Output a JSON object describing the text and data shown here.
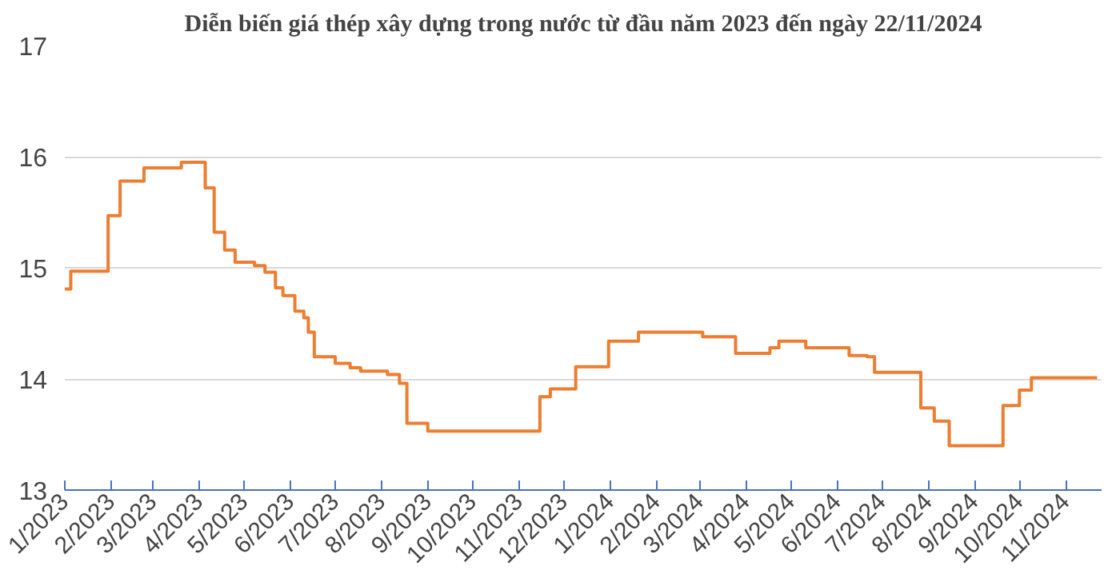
{
  "chart_data": {
    "type": "step",
    "title": "Diễn biến giá thép xây dựng trong nước từ đầu năm 2023 đến ngày 22/11/2024",
    "x": [
      "2023-01-01",
      "2023-01-05",
      "2023-01-30",
      "2023-02-07",
      "2023-02-23",
      "2023-03-20",
      "2023-04-05",
      "2023-04-11",
      "2023-04-18",
      "2023-04-25",
      "2023-05-08",
      "2023-05-15",
      "2023-05-22",
      "2023-05-27",
      "2023-06-04",
      "2023-06-10",
      "2023-06-13",
      "2023-06-17",
      "2023-07-01",
      "2023-07-11",
      "2023-07-18",
      "2023-08-05",
      "2023-08-13",
      "2023-08-18",
      "2023-09-01",
      "2023-11-15",
      "2023-11-22",
      "2023-12-09",
      "2023-12-31",
      "2024-01-20",
      "2024-03-03",
      "2024-03-25",
      "2024-04-17",
      "2024-04-23",
      "2024-05-11",
      "2024-06-09",
      "2024-06-21",
      "2024-06-26",
      "2024-07-27",
      "2024-08-05",
      "2024-08-15",
      "2024-09-20",
      "2024-10-01",
      "2024-10-09",
      "2024-11-22"
    ],
    "series": [
      {
        "color": "#ed7d31",
        "values": [
          14.81,
          14.97,
          15.47,
          15.78,
          15.9,
          15.95,
          15.72,
          15.32,
          15.16,
          15.05,
          15.02,
          14.96,
          14.82,
          14.75,
          14.61,
          14.55,
          14.42,
          14.2,
          14.14,
          14.1,
          14.07,
          14.04,
          13.96,
          13.6,
          13.53,
          13.84,
          13.91,
          14.11,
          14.34,
          14.42,
          14.38,
          14.23,
          14.28,
          14.34,
          14.28,
          14.21,
          14.2,
          14.06,
          13.74,
          13.62,
          13.4,
          13.76,
          13.9,
          14.01,
          14.01
        ]
      }
    ],
    "xlim": [
      "2023-01-01",
      "2024-11-25"
    ],
    "xticks": [
      {
        "value": "2023-01-01",
        "label": "1/2023"
      },
      {
        "value": "2023-02-01",
        "label": "2/2023"
      },
      {
        "value": "2023-03-01",
        "label": "3/2023"
      },
      {
        "value": "2023-04-01",
        "label": "4/2023"
      },
      {
        "value": "2023-05-01",
        "label": "5/2023"
      },
      {
        "value": "2023-06-01",
        "label": "6/2023"
      },
      {
        "value": "2023-07-01",
        "label": "7/2023"
      },
      {
        "value": "2023-08-01",
        "label": "8/2023"
      },
      {
        "value": "2023-09-01",
        "label": "9/2023"
      },
      {
        "value": "2023-10-01",
        "label": "10/2023"
      },
      {
        "value": "2023-11-01",
        "label": "11/2023"
      },
      {
        "value": "2023-12-01",
        "label": "12/2023"
      },
      {
        "value": "2024-01-01",
        "label": "1/2024"
      },
      {
        "value": "2024-02-01",
        "label": "2/2024"
      },
      {
        "value": "2024-03-01",
        "label": "3/2024"
      },
      {
        "value": "2024-04-01",
        "label": "4/2024"
      },
      {
        "value": "2024-05-01",
        "label": "5/2024"
      },
      {
        "value": "2024-06-01",
        "label": "6/2024"
      },
      {
        "value": "2024-07-01",
        "label": "7/2024"
      },
      {
        "value": "2024-08-01",
        "label": "8/2024"
      },
      {
        "value": "2024-09-01",
        "label": "9/2024"
      },
      {
        "value": "2024-10-01",
        "label": "10/2024"
      },
      {
        "value": "2024-11-01",
        "label": "11/2024"
      }
    ],
    "ylim": [
      13,
      17
    ],
    "yticks": [
      13,
      14,
      15,
      16,
      17
    ],
    "grid": "y",
    "line_style": "solid"
  }
}
